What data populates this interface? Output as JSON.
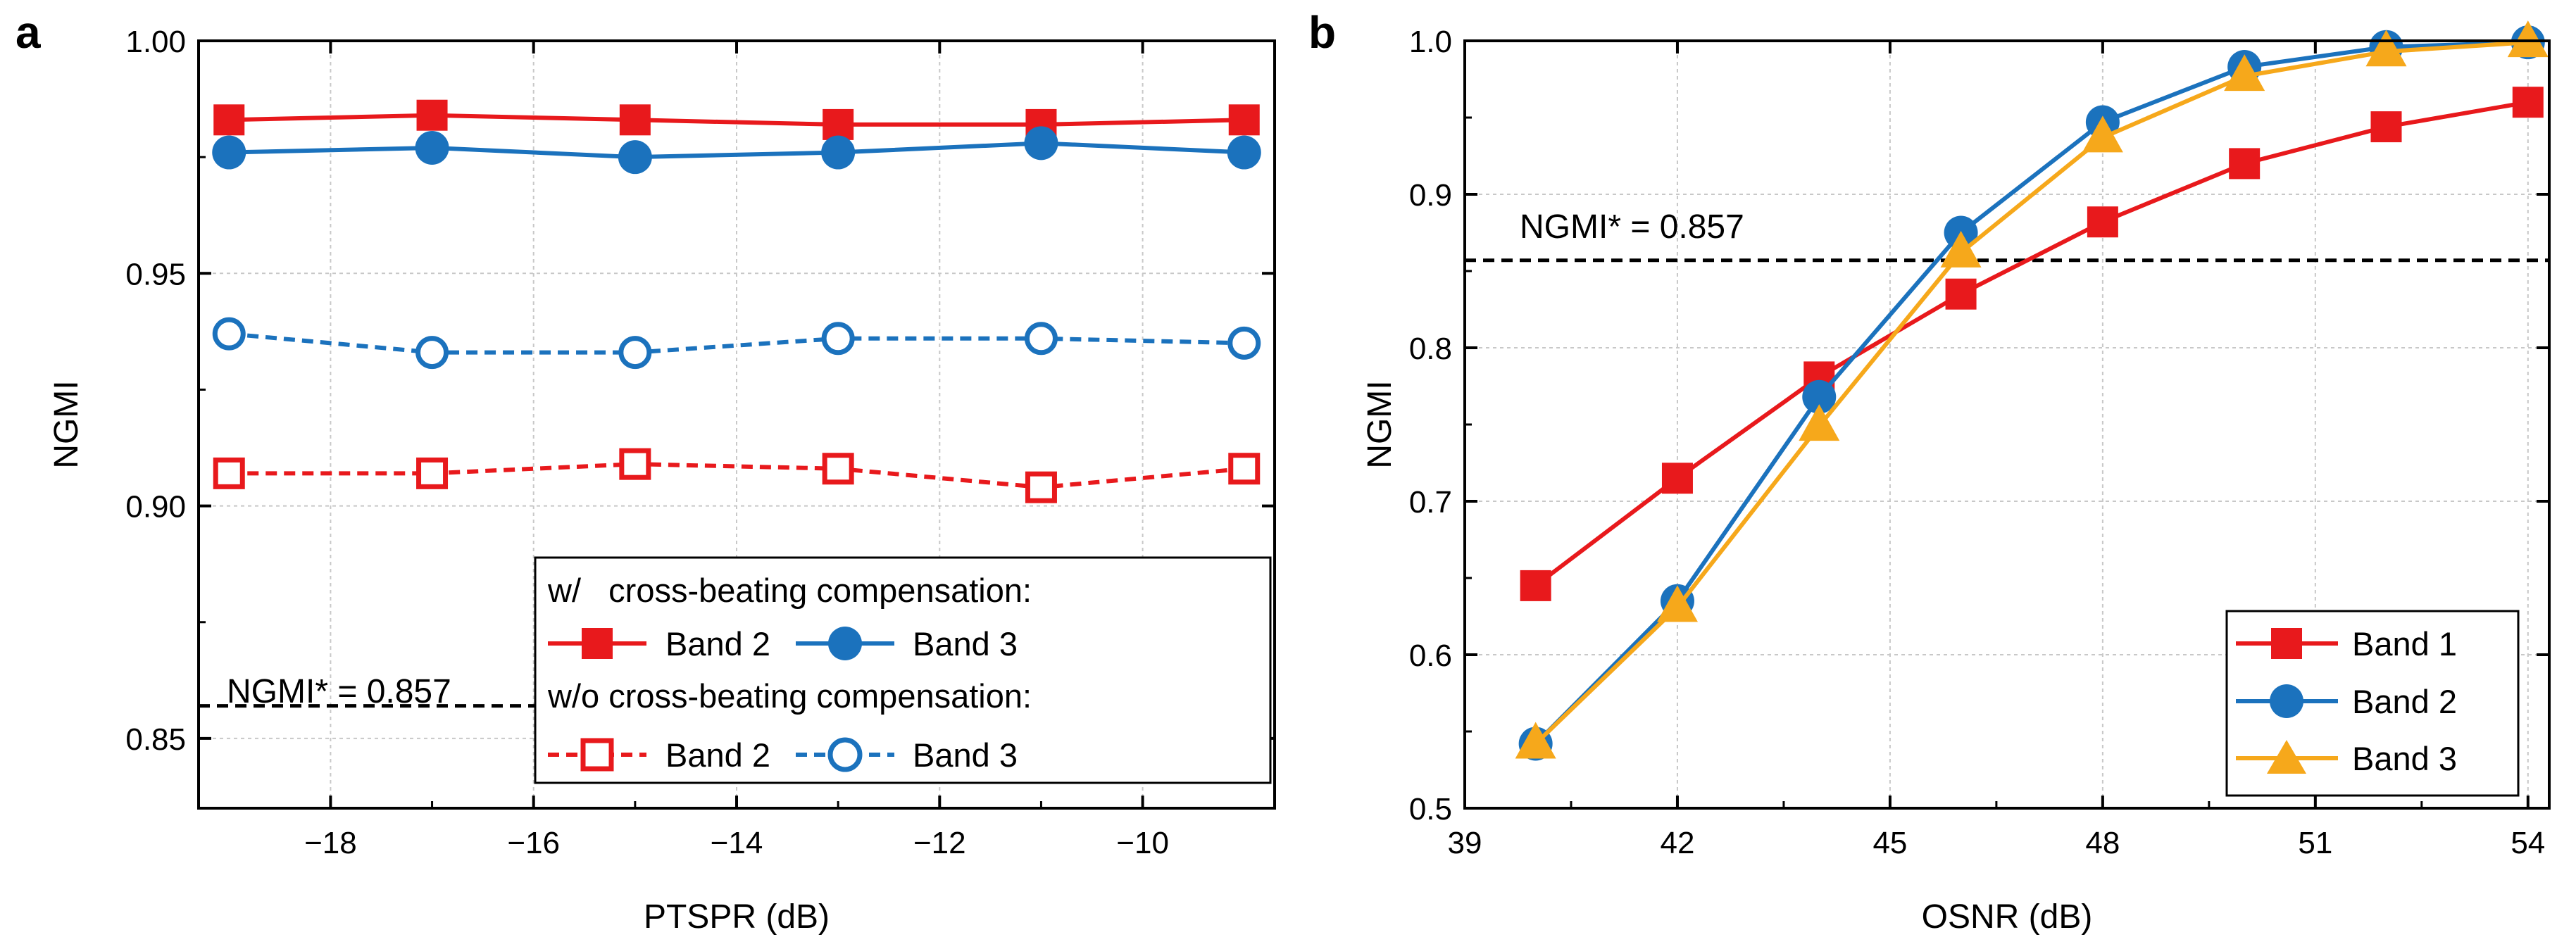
{
  "chart_data": [
    {
      "panel": "a",
      "type": "line",
      "xlabel": "PTSPR (dB)",
      "ylabel": "NGMI",
      "xlim": [
        -19.3,
        -8.7
      ],
      "ylim": [
        0.835,
        1.0
      ],
      "xticks": [
        -18,
        -16,
        -14,
        -12,
        -10
      ],
      "xtick_labels": [
        "−18",
        "−16",
        "−14",
        "−12",
        "−10"
      ],
      "yticks": [
        0.85,
        0.9,
        0.95,
        1.0
      ],
      "ytick_labels": [
        "0.85",
        "0.90",
        "0.95",
        "1.00"
      ],
      "grid": true,
      "x": [
        -19,
        -17,
        -15,
        -13,
        -11,
        -9
      ],
      "reference": {
        "value": 0.857,
        "label": "NGMI* = 0.857"
      },
      "legend_headers": [
        "w/   cross-beating compensation:",
        "w/o cross-beating compensation:"
      ],
      "series": [
        {
          "name": "Band 2",
          "group": "w/",
          "color": "#e8191c",
          "marker": "square",
          "filled": true,
          "dashed": false,
          "values": [
            0.983,
            0.984,
            0.983,
            0.982,
            0.982,
            0.983
          ]
        },
        {
          "name": "Band 3",
          "group": "w/",
          "color": "#1b72bd",
          "marker": "circle",
          "filled": true,
          "dashed": false,
          "values": [
            0.976,
            0.977,
            0.975,
            0.976,
            0.978,
            0.976
          ]
        },
        {
          "name": "Band 2",
          "group": "w/o",
          "color": "#e8191c",
          "marker": "square",
          "filled": false,
          "dashed": true,
          "values": [
            0.907,
            0.907,
            0.909,
            0.908,
            0.904,
            0.908
          ]
        },
        {
          "name": "Band 3",
          "group": "w/o",
          "color": "#1b72bd",
          "marker": "circle",
          "filled": false,
          "dashed": true,
          "values": [
            0.937,
            0.933,
            0.933,
            0.936,
            0.936,
            0.935
          ]
        }
      ]
    },
    {
      "panel": "b",
      "type": "line",
      "xlabel": "OSNR (dB)",
      "ylabel": "NGMI",
      "xlim": [
        39,
        54.3
      ],
      "ylim": [
        0.5,
        1.0
      ],
      "xticks": [
        39,
        42,
        45,
        48,
        51,
        54
      ],
      "xtick_labels": [
        "39",
        "42",
        "45",
        "48",
        "51",
        "54"
      ],
      "yticks": [
        0.5,
        0.6,
        0.7,
        0.8,
        0.9,
        1.0
      ],
      "ytick_labels": [
        "0.5",
        "0.6",
        "0.7",
        "0.8",
        "0.9",
        "1.0"
      ],
      "grid": true,
      "x": [
        40,
        42,
        44,
        46,
        48,
        50,
        52,
        54
      ],
      "reference": {
        "value": 0.857,
        "label": "NGMI* = 0.857"
      },
      "series": [
        {
          "name": "Band 1",
          "color": "#e8191c",
          "marker": "square",
          "filled": true,
          "dashed": false,
          "values": [
            0.645,
            0.715,
            0.781,
            0.835,
            0.882,
            0.92,
            0.944,
            0.96
          ]
        },
        {
          "name": "Band 2",
          "color": "#1b72bd",
          "marker": "circle",
          "filled": true,
          "dashed": false,
          "values": [
            0.542,
            0.635,
            0.768,
            0.875,
            0.947,
            0.983,
            0.996,
            0.999
          ]
        },
        {
          "name": "Band 3",
          "color": "#f6a81b",
          "marker": "triangle",
          "filled": true,
          "dashed": false,
          "values": [
            0.542,
            0.631,
            0.749,
            0.862,
            0.937,
            0.977,
            0.993,
            0.999
          ]
        }
      ]
    }
  ]
}
